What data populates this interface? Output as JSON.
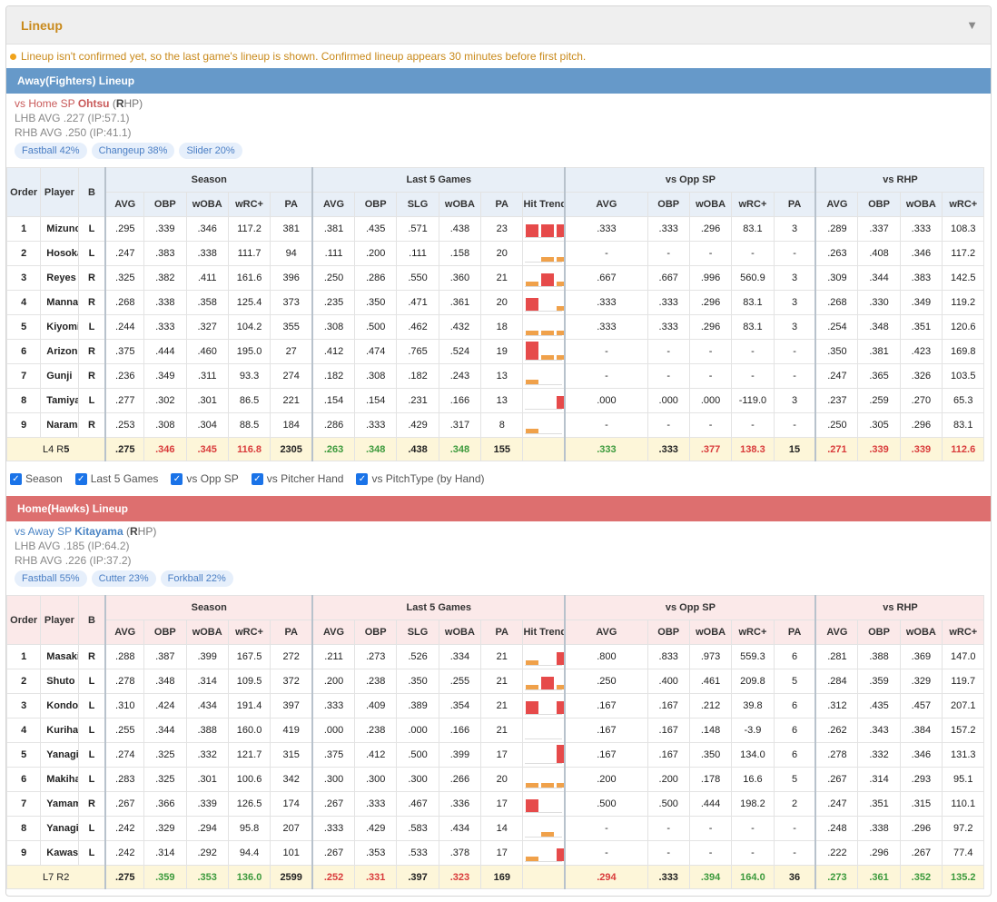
{
  "header": {
    "title": "Lineup",
    "collapse_icon": "chevron-down-icon"
  },
  "notice": "Lineup isn't confirmed yet, so the last game's lineup is shown. Confirmed lineup appears 30 minutes before first pitch.",
  "columns": {
    "groups": [
      "Season",
      "Last 5 Games",
      "vs Opp SP",
      "vs RHP"
    ],
    "order": "Order",
    "player": "Player",
    "bat": "B",
    "season": [
      "AVG",
      "OBP",
      "wOBA",
      "wRC+",
      "PA"
    ],
    "last5": [
      "AVG",
      "OBP",
      "SLG",
      "wOBA",
      "PA",
      "Hit Trend"
    ],
    "oppsp": [
      "AVG",
      "OBP",
      "wOBA",
      "wRC+",
      "PA"
    ],
    "hand": [
      "AVG",
      "OBP",
      "wOBA",
      "wRC+"
    ]
  },
  "away": {
    "title": "Away(Fighters) Lineup",
    "sp_prefix": "vs Home SP ",
    "sp_name": "Ohtsu",
    "sp_hand_open": " (",
    "sp_hand_letter": "R",
    "sp_hand_rest": "HP)",
    "lhb": "LHB AVG .227 (IP:57.1)",
    "rhb": "RHB AVG .250 (IP:41.1)",
    "pitches": [
      "Fastball 42%",
      "Changeup 38%",
      "Slider 20%"
    ],
    "rows": [
      {
        "order": "1",
        "player": "Mizuno",
        "bat": "L",
        "season": [
          ".295",
          ".339",
          ".346",
          "117.2",
          "381"
        ],
        "last5": [
          ".381",
          ".435",
          ".571",
          ".438",
          "23"
        ],
        "trend": [
          [
            "hit",
            14
          ],
          [
            "hit",
            14
          ],
          [
            "hit",
            14
          ],
          [
            "out",
            5
          ],
          [
            "out",
            5
          ]
        ],
        "oppsp": [
          ".333",
          ".333",
          ".296",
          "83.1",
          "3"
        ],
        "hand": [
          ".289",
          ".337",
          ".333",
          "108.3"
        ]
      },
      {
        "order": "2",
        "player": "Hosokawa",
        "bat": "L",
        "season": [
          ".247",
          ".383",
          ".338",
          "111.7",
          "94"
        ],
        "last5": [
          ".111",
          ".200",
          ".111",
          ".158",
          "20"
        ],
        "trend": [
          [
            "none",
            0
          ],
          [
            "out",
            5
          ],
          [
            "out",
            5
          ],
          [
            "none",
            0
          ],
          [
            "none",
            0
          ]
        ],
        "oppsp": [
          "-",
          "-",
          "-",
          "-",
          "-"
        ],
        "hand": [
          ".263",
          ".408",
          ".346",
          "117.2"
        ]
      },
      {
        "order": "3",
        "player": "Reyes",
        "bat": "R",
        "season": [
          ".325",
          ".382",
          ".411",
          "161.6",
          "396"
        ],
        "last5": [
          ".250",
          ".286",
          ".550",
          ".360",
          "21"
        ],
        "trend": [
          [
            "out",
            5
          ],
          [
            "hit",
            14
          ],
          [
            "out",
            5
          ],
          [
            "out",
            5
          ],
          [
            "none",
            0
          ]
        ],
        "oppsp": [
          ".667",
          ".667",
          ".996",
          "560.9",
          "3"
        ],
        "hand": [
          ".309",
          ".344",
          ".383",
          "142.5"
        ]
      },
      {
        "order": "4",
        "player": "Mannami",
        "bat": "R",
        "season": [
          ".268",
          ".338",
          ".358",
          "125.4",
          "373"
        ],
        "last5": [
          ".235",
          ".350",
          ".471",
          ".361",
          "20"
        ],
        "trend": [
          [
            "hit",
            14
          ],
          [
            "none",
            0
          ],
          [
            "out",
            5
          ],
          [
            "out",
            5
          ],
          [
            "out",
            5
          ]
        ],
        "oppsp": [
          ".333",
          ".333",
          ".296",
          "83.1",
          "3"
        ],
        "hand": [
          ".268",
          ".330",
          ".349",
          "119.2"
        ]
      },
      {
        "order": "5",
        "player": "Kiyomiya",
        "bat": "L",
        "season": [
          ".244",
          ".333",
          ".327",
          "104.2",
          "355"
        ],
        "last5": [
          ".308",
          ".500",
          ".462",
          ".432",
          "18"
        ],
        "trend": [
          [
            "out",
            5
          ],
          [
            "out",
            5
          ],
          [
            "out",
            5
          ],
          [
            "out",
            5
          ],
          [
            "out",
            5
          ]
        ],
        "oppsp": [
          ".333",
          ".333",
          ".296",
          "83.1",
          "3"
        ],
        "hand": [
          ".254",
          ".348",
          ".351",
          "120.6"
        ]
      },
      {
        "order": "6",
        "player": "Arizono",
        "bat": "R",
        "season": [
          ".375",
          ".444",
          ".460",
          "195.0",
          "27"
        ],
        "last5": [
          ".412",
          ".474",
          ".765",
          ".524",
          "19"
        ],
        "trend": [
          [
            "hit",
            20
          ],
          [
            "out",
            5
          ],
          [
            "out",
            5
          ],
          [
            "hit",
            14
          ],
          [
            "none",
            0
          ]
        ],
        "oppsp": [
          "-",
          "-",
          "-",
          "-",
          "-"
        ],
        "hand": [
          ".350",
          ".381",
          ".423",
          "169.8"
        ]
      },
      {
        "order": "7",
        "player": "Gunji",
        "bat": "R",
        "season": [
          ".236",
          ".349",
          ".311",
          "93.3",
          "274"
        ],
        "last5": [
          ".182",
          ".308",
          ".182",
          ".243",
          "13"
        ],
        "trend": [
          [
            "out",
            5
          ],
          [
            "none",
            0
          ],
          [
            "none",
            0
          ],
          [
            "none",
            0
          ],
          [
            "out",
            5
          ]
        ],
        "oppsp": [
          "-",
          "-",
          "-",
          "-",
          "-"
        ],
        "hand": [
          ".247",
          ".365",
          ".326",
          "103.5"
        ]
      },
      {
        "order": "8",
        "player": "Tamiya",
        "bat": "L",
        "season": [
          ".277",
          ".302",
          ".301",
          "86.5",
          "221"
        ],
        "last5": [
          ".154",
          ".154",
          ".231",
          ".166",
          "13"
        ],
        "trend": [
          [
            "none",
            0
          ],
          [
            "none",
            0
          ],
          [
            "hit",
            14
          ],
          [
            "none",
            0
          ],
          [
            "none",
            0
          ]
        ],
        "oppsp": [
          ".000",
          ".000",
          ".000",
          "-119.0",
          "3"
        ],
        "hand": [
          ".237",
          ".259",
          ".270",
          "65.3"
        ]
      },
      {
        "order": "9",
        "player": "Narama",
        "bat": "R",
        "season": [
          ".253",
          ".308",
          ".304",
          "88.5",
          "184"
        ],
        "last5": [
          ".286",
          ".333",
          ".429",
          ".317",
          "8"
        ],
        "trend": [
          [
            "out",
            5
          ],
          [
            "none",
            0
          ],
          [
            "none",
            0
          ],
          [
            "none",
            0
          ],
          [
            "out",
            5
          ]
        ],
        "oppsp": [
          "-",
          "-",
          "-",
          "-",
          "-"
        ],
        "hand": [
          ".250",
          ".305",
          ".296",
          "83.1"
        ]
      }
    ],
    "total": {
      "label_pre": "L4 R",
      "label_num": "5",
      "season": [
        [
          ".275",
          ""
        ],
        [
          ".346",
          "red"
        ],
        [
          ".345",
          "red"
        ],
        [
          "116.8",
          "red"
        ],
        [
          "2305",
          ""
        ]
      ],
      "last5": [
        [
          ".263",
          "green"
        ],
        [
          ".348",
          "green"
        ],
        [
          ".438",
          ""
        ],
        [
          ".348",
          "green"
        ],
        [
          "155",
          ""
        ]
      ],
      "oppsp": [
        [
          ".333",
          "green"
        ],
        [
          ".333",
          ""
        ],
        [
          ".377",
          "red"
        ],
        [
          "138.3",
          "red"
        ],
        [
          "15",
          ""
        ]
      ],
      "hand": [
        [
          ".271",
          "red"
        ],
        [
          ".339",
          "red"
        ],
        [
          ".339",
          "red"
        ],
        [
          "112.6",
          "red"
        ]
      ]
    }
  },
  "filters": [
    "Season",
    "Last 5 Games",
    "vs Opp SP",
    "vs Pitcher Hand",
    "vs PitchType (by Hand)"
  ],
  "home": {
    "title": "Home(Hawks) Lineup",
    "sp_prefix": "vs Away SP ",
    "sp_name": "Kitayama",
    "sp_hand_open": " (",
    "sp_hand_letter": "R",
    "sp_hand_rest": "HP)",
    "lhb": "LHB AVG .185 (IP:64.2)",
    "rhb": "RHB AVG .226 (IP:37.2)",
    "pitches": [
      "Fastball 55%",
      "Cutter 23%",
      "Forkball 22%"
    ],
    "rows": [
      {
        "order": "1",
        "player": "Masaki",
        "bat": "R",
        "season": [
          ".288",
          ".387",
          ".399",
          "167.5",
          "272"
        ],
        "last5": [
          ".211",
          ".273",
          ".526",
          ".334",
          "21"
        ],
        "trend": [
          [
            "out",
            5
          ],
          [
            "none",
            0
          ],
          [
            "hit",
            14
          ],
          [
            "none",
            0
          ],
          [
            "out",
            5
          ]
        ],
        "oppsp": [
          ".800",
          ".833",
          ".973",
          "559.3",
          "6"
        ],
        "hand": [
          ".281",
          ".388",
          ".369",
          "147.0"
        ]
      },
      {
        "order": "2",
        "player": "Shuto",
        "bat": "L",
        "season": [
          ".278",
          ".348",
          ".314",
          "109.5",
          "372"
        ],
        "last5": [
          ".200",
          ".238",
          ".350",
          ".255",
          "21"
        ],
        "trend": [
          [
            "out",
            5
          ],
          [
            "hit",
            14
          ],
          [
            "out",
            5
          ],
          [
            "none",
            0
          ],
          [
            "out",
            5
          ]
        ],
        "oppsp": [
          ".250",
          ".400",
          ".461",
          "209.8",
          "5"
        ],
        "hand": [
          ".284",
          ".359",
          ".329",
          "119.7"
        ]
      },
      {
        "order": "3",
        "player": "Kondoh",
        "bat": "L",
        "season": [
          ".310",
          ".424",
          ".434",
          "191.4",
          "397"
        ],
        "last5": [
          ".333",
          ".409",
          ".389",
          ".354",
          "21"
        ],
        "trend": [
          [
            "hit",
            14
          ],
          [
            "none",
            0
          ],
          [
            "hit",
            14
          ],
          [
            "out",
            5
          ],
          [
            "out",
            5
          ]
        ],
        "oppsp": [
          ".167",
          ".167",
          ".212",
          "39.8",
          "6"
        ],
        "hand": [
          ".312",
          ".435",
          ".457",
          "207.1"
        ]
      },
      {
        "order": "4",
        "player": "Kurihara",
        "bat": "L",
        "season": [
          ".255",
          ".344",
          ".388",
          "160.0",
          "419"
        ],
        "last5": [
          ".000",
          ".238",
          ".000",
          ".166",
          "21"
        ],
        "trend": [
          [
            "none",
            0
          ],
          [
            "none",
            0
          ],
          [
            "none",
            0
          ],
          [
            "none",
            0
          ],
          [
            "none",
            0
          ]
        ],
        "oppsp": [
          ".167",
          ".167",
          ".148",
          "-3.9",
          "6"
        ],
        "hand": [
          ".262",
          ".343",
          ".384",
          "157.2"
        ]
      },
      {
        "order": "5",
        "player": "Yanagita",
        "bat": "L",
        "season": [
          ".274",
          ".325",
          ".332",
          "121.7",
          "315"
        ],
        "last5": [
          ".375",
          ".412",
          ".500",
          ".399",
          "17"
        ],
        "trend": [
          [
            "none",
            0
          ],
          [
            "none",
            0
          ],
          [
            "hit",
            20
          ],
          [
            "none",
            0
          ],
          [
            "hit",
            20
          ]
        ],
        "oppsp": [
          ".167",
          ".167",
          ".350",
          "134.0",
          "6"
        ],
        "hand": [
          ".278",
          ".332",
          ".346",
          "131.3"
        ]
      },
      {
        "order": "6",
        "player": "Makihara",
        "bat": "L",
        "season": [
          ".283",
          ".325",
          ".301",
          "100.6",
          "342"
        ],
        "last5": [
          ".300",
          ".300",
          ".300",
          ".266",
          "20"
        ],
        "trend": [
          [
            "out",
            5
          ],
          [
            "out",
            5
          ],
          [
            "out",
            5
          ],
          [
            "hit",
            14
          ],
          [
            "hit",
            14
          ]
        ],
        "oppsp": [
          ".200",
          ".200",
          ".178",
          "16.6",
          "5"
        ],
        "hand": [
          ".267",
          ".314",
          ".293",
          "95.1"
        ]
      },
      {
        "order": "7",
        "player": "Yamamoto",
        "bat": "R",
        "season": [
          ".267",
          ".366",
          ".339",
          "126.5",
          "174"
        ],
        "last5": [
          ".267",
          ".333",
          ".467",
          ".336",
          "17"
        ],
        "trend": [
          [
            "hit",
            14
          ],
          [
            "none",
            0
          ],
          [
            "none",
            0
          ],
          [
            "hit",
            14
          ],
          [
            "out",
            5
          ]
        ],
        "oppsp": [
          ".500",
          ".500",
          ".444",
          "198.2",
          "2"
        ],
        "hand": [
          ".247",
          ".351",
          ".315",
          "110.1"
        ]
      },
      {
        "order": "8",
        "player": "Yanagima...",
        "bat": "L",
        "season": [
          ".242",
          ".329",
          ".294",
          "95.8",
          "207"
        ],
        "last5": [
          ".333",
          ".429",
          ".583",
          ".434",
          "14"
        ],
        "trend": [
          [
            "none",
            0
          ],
          [
            "out",
            5
          ],
          [
            "none",
            0
          ],
          [
            "hit",
            14
          ],
          [
            "out",
            5
          ]
        ],
        "oppsp": [
          "-",
          "-",
          "-",
          "-",
          "-"
        ],
        "hand": [
          ".248",
          ".338",
          ".296",
          "97.2"
        ]
      },
      {
        "order": "9",
        "player": "Kawase",
        "bat": "L",
        "season": [
          ".242",
          ".314",
          ".292",
          "94.4",
          "101"
        ],
        "last5": [
          ".267",
          ".353",
          ".533",
          ".378",
          "17"
        ],
        "trend": [
          [
            "out",
            5
          ],
          [
            "none",
            0
          ],
          [
            "hit",
            14
          ],
          [
            "out",
            5
          ],
          [
            "out",
            5
          ]
        ],
        "oppsp": [
          "-",
          "-",
          "-",
          "-",
          "-"
        ],
        "hand": [
          ".222",
          ".296",
          ".267",
          "77.4"
        ]
      }
    ],
    "total": {
      "label_pre": "L7 R2",
      "label_num": "",
      "season": [
        [
          ".275",
          ""
        ],
        [
          ".359",
          "green"
        ],
        [
          ".353",
          "green"
        ],
        [
          "136.0",
          "green"
        ],
        [
          "2599",
          ""
        ]
      ],
      "last5": [
        [
          ".252",
          "red"
        ],
        [
          ".331",
          "red"
        ],
        [
          ".397",
          ""
        ],
        [
          ".323",
          "red"
        ],
        [
          "169",
          ""
        ]
      ],
      "oppsp": [
        [
          ".294",
          "red"
        ],
        [
          ".333",
          ""
        ],
        [
          ".394",
          "green"
        ],
        [
          "164.0",
          "green"
        ],
        [
          "36",
          ""
        ]
      ],
      "hand": [
        [
          ".273",
          "green"
        ],
        [
          ".361",
          "green"
        ],
        [
          ".352",
          "green"
        ],
        [
          "135.2",
          "green"
        ]
      ]
    }
  }
}
